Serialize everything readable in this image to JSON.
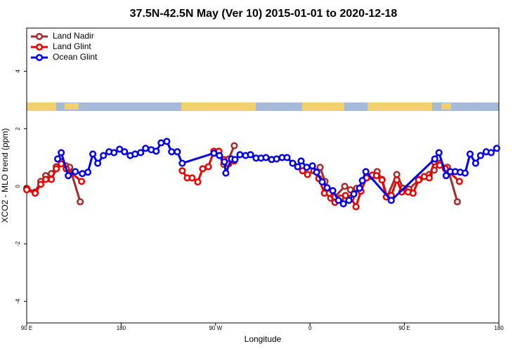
{
  "chart_data": {
    "type": "line",
    "title": "37.5N-42.5N May (Ver 10)   2015-01-01 to 2020-12-18",
    "x_label": "Longitude",
    "y_label": "XCO2 - MLO trend (ppm)",
    "xlim": [
      90,
      540
    ],
    "ylim": [
      -4.75,
      5.5
    ],
    "xticks": [
      {
        "value": 90,
        "label": "90 E"
      },
      {
        "value": 180,
        "label": "180"
      },
      {
        "value": 270,
        "label": "90 W"
      },
      {
        "value": 360,
        "label": "0"
      },
      {
        "value": 450,
        "label": "90 E"
      },
      {
        "value": 540,
        "label": "180"
      }
    ],
    "yticks": [
      -4,
      -2,
      0,
      2,
      4
    ],
    "legend": "top-left",
    "series": [
      {
        "name": "Land Nadir",
        "color": "#a52a2a",
        "x": [
          90,
          98,
          103.4,
          108.1,
          113.5,
          118.2,
          122.9,
          127.6,
          131,
          141,
          null,
          268.4,
          273.1,
          277.8,
          282.5,
          287.8,
          null,
          369.6,
          374.3,
          379.7,
          383.7,
          393.1,
          398.5,
          404.5,
          413.9,
          418.6,
          424,
          428.6,
          433.4,
          442.7,
          448.7,
          454.2,
          464.2,
          468.9,
          473.6,
          478.3,
          483.6,
          491,
          500.4
        ],
        "values": [
          -0.07,
          -0.2,
          0.17,
          0.37,
          0.44,
          0.68,
          0.85,
          0.71,
          0.66,
          -0.54,
          null,
          1.22,
          1.22,
          0.76,
          0.95,
          1.41,
          null,
          0.66,
          0.17,
          -0.41,
          -0.37,
          0,
          -0.12,
          -0.07,
          0.29,
          0.34,
          0.51,
          0.24,
          -0.37,
          0.41,
          -0.07,
          -0.1,
          0.24,
          0.34,
          0.41,
          0.56,
          0.8,
          0.66,
          -0.54
        ]
      },
      {
        "name": "Land Glint",
        "color": "#ee0000",
        "x": [
          90,
          98,
          103.4,
          108.1,
          113.5,
          118.2,
          122.9,
          127.6,
          142.3,
          null,
          238.2,
          243,
          247.6,
          253,
          257.7,
          263.1,
          268.4,
          273.1,
          277.8,
          282.5,
          287.8,
          null,
          352.9,
          357.6,
          363.6,
          368.3,
          373.7,
          378.4,
          383.7,
          389.1,
          393.8,
          399.1,
          403.8,
          408.5,
          413.9,
          419.3,
          423.3,
          428.6,
          432.7,
          437.4,
          442.7,
          447.4,
          453.5,
          458.2,
          463.5,
          468.9,
          473.6,
          478.3,
          483.6,
          489,
          502.4
        ],
        "values": [
          -0.12,
          -0.24,
          0.07,
          0.24,
          0.24,
          0.61,
          0.78,
          0.61,
          0.17,
          null,
          0.54,
          0.29,
          0.29,
          0.15,
          0.61,
          0.68,
          1.22,
          1.22,
          0.93,
          0.78,
          0.88,
          null,
          0.54,
          0.41,
          0.54,
          0.27,
          -0.24,
          -0.24,
          -0.56,
          -0.41,
          -0.32,
          -0.41,
          -0.71,
          -0.17,
          0.29,
          0.39,
          0.37,
          0.22,
          -0.37,
          -0.32,
          0.22,
          -0.2,
          -0.2,
          -0.24,
          0.22,
          0.34,
          0.29,
          0.85,
          0.73,
          0.61,
          0.17
        ]
      },
      {
        "name": "Ocean Glint",
        "color": "#0000ee",
        "x": [
          119.5,
          122.9,
          129.6,
          136.3,
          143,
          148.3,
          153,
          157.7,
          163.1,
          168.5,
          173.2,
          178.5,
          183.2,
          188.6,
          193.3,
          198.6,
          203.3,
          208.7,
          213.4,
          218.1,
          223.5,
          228.1,
          233.5,
          238.2,
          268.4,
          273.7,
          278.4,
          279.8,
          285.1,
          288.5,
          293.2,
          298.6,
          303.3,
          308.6,
          313.3,
          318,
          323.4,
          328.1,
          333.4,
          338.1,
          343.5,
          348.2,
          351.5,
          356.9,
          362.3,
          366.3,
          371.6,
          376.3,
          381.7,
          387.1,
          391.8,
          397.1,
          401.8,
          407.2,
          409.9,
          413.2,
          437.4,
          478.9,
          482.9,
          489.7,
          493.7,
          498.4,
          503.1,
          507.8,
          512.5,
          517.8,
          522.5,
          527.9,
          532.6,
          537.9
        ],
        "values": [
          0.95,
          1.17,
          0.37,
          0.51,
          0.44,
          0.49,
          1.12,
          0.8,
          1.07,
          1.2,
          1.17,
          1.29,
          1.2,
          1.07,
          1.12,
          1.17,
          1.32,
          1.27,
          1.22,
          1.51,
          1.56,
          1.2,
          1.2,
          0.8,
          1.15,
          1.07,
          0.85,
          0.46,
          0.95,
          0.93,
          1.1,
          1.07,
          1.1,
          0.98,
          0.98,
          1,
          0.93,
          0.95,
          1,
          1,
          0.8,
          0.68,
          0.88,
          0.66,
          0.71,
          0.49,
          0.15,
          -0.05,
          -0.15,
          -0.49,
          -0.61,
          -0.49,
          -0.27,
          -0.07,
          0.2,
          0.51,
          -0.49,
          0.95,
          1.17,
          0.37,
          0.51,
          0.51,
          0.49,
          0.46,
          1.12,
          0.8,
          1.07,
          1.2,
          1.17,
          1.32
        ]
      }
    ]
  }
}
